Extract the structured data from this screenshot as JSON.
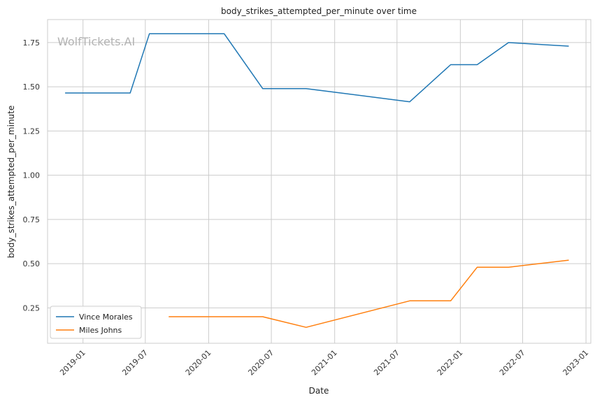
{
  "chart_data": {
    "type": "line",
    "title": "body_strikes_attempted_per_minute over time",
    "xlabel": "Date",
    "ylabel": "body_strikes_attempted_per_minute",
    "watermark": "WolfTickets.AI",
    "x_ticks": [
      "2019-01",
      "2019-07",
      "2020-01",
      "2020-07",
      "2021-01",
      "2021-07",
      "2022-01",
      "2022-07",
      "2023-01"
    ],
    "y_ticks": [
      "0.25",
      "0.50",
      "0.75",
      "1.00",
      "1.25",
      "1.50",
      "1.75"
    ],
    "xlim": [
      "2018-09-20",
      "2023-01-15"
    ],
    "ylim": [
      0.05,
      1.88
    ],
    "grid": true,
    "legend_position": "lower-left",
    "series": [
      {
        "name": "Vince Morales",
        "color": "#1f77b4",
        "points": [
          [
            "2018-11-10",
            1.465
          ],
          [
            "2019-05-18",
            1.465
          ],
          [
            "2019-07-13",
            1.8
          ],
          [
            "2020-02-15",
            1.8
          ],
          [
            "2020-06-06",
            1.49
          ],
          [
            "2020-10-10",
            1.49
          ],
          [
            "2021-08-07",
            1.415
          ],
          [
            "2021-12-04",
            1.625
          ],
          [
            "2022-02-19",
            1.625
          ],
          [
            "2022-05-21",
            1.75
          ],
          [
            "2022-11-12",
            1.73
          ]
        ]
      },
      {
        "name": "Miles Johns",
        "color": "#ff7f0e",
        "points": [
          [
            "2019-09-07",
            0.2
          ],
          [
            "2020-06-06",
            0.2
          ],
          [
            "2020-10-10",
            0.14
          ],
          [
            "2021-08-07",
            0.29
          ],
          [
            "2021-12-04",
            0.29
          ],
          [
            "2022-02-19",
            0.48
          ],
          [
            "2022-05-21",
            0.48
          ],
          [
            "2022-11-12",
            0.52
          ]
        ]
      }
    ]
  }
}
